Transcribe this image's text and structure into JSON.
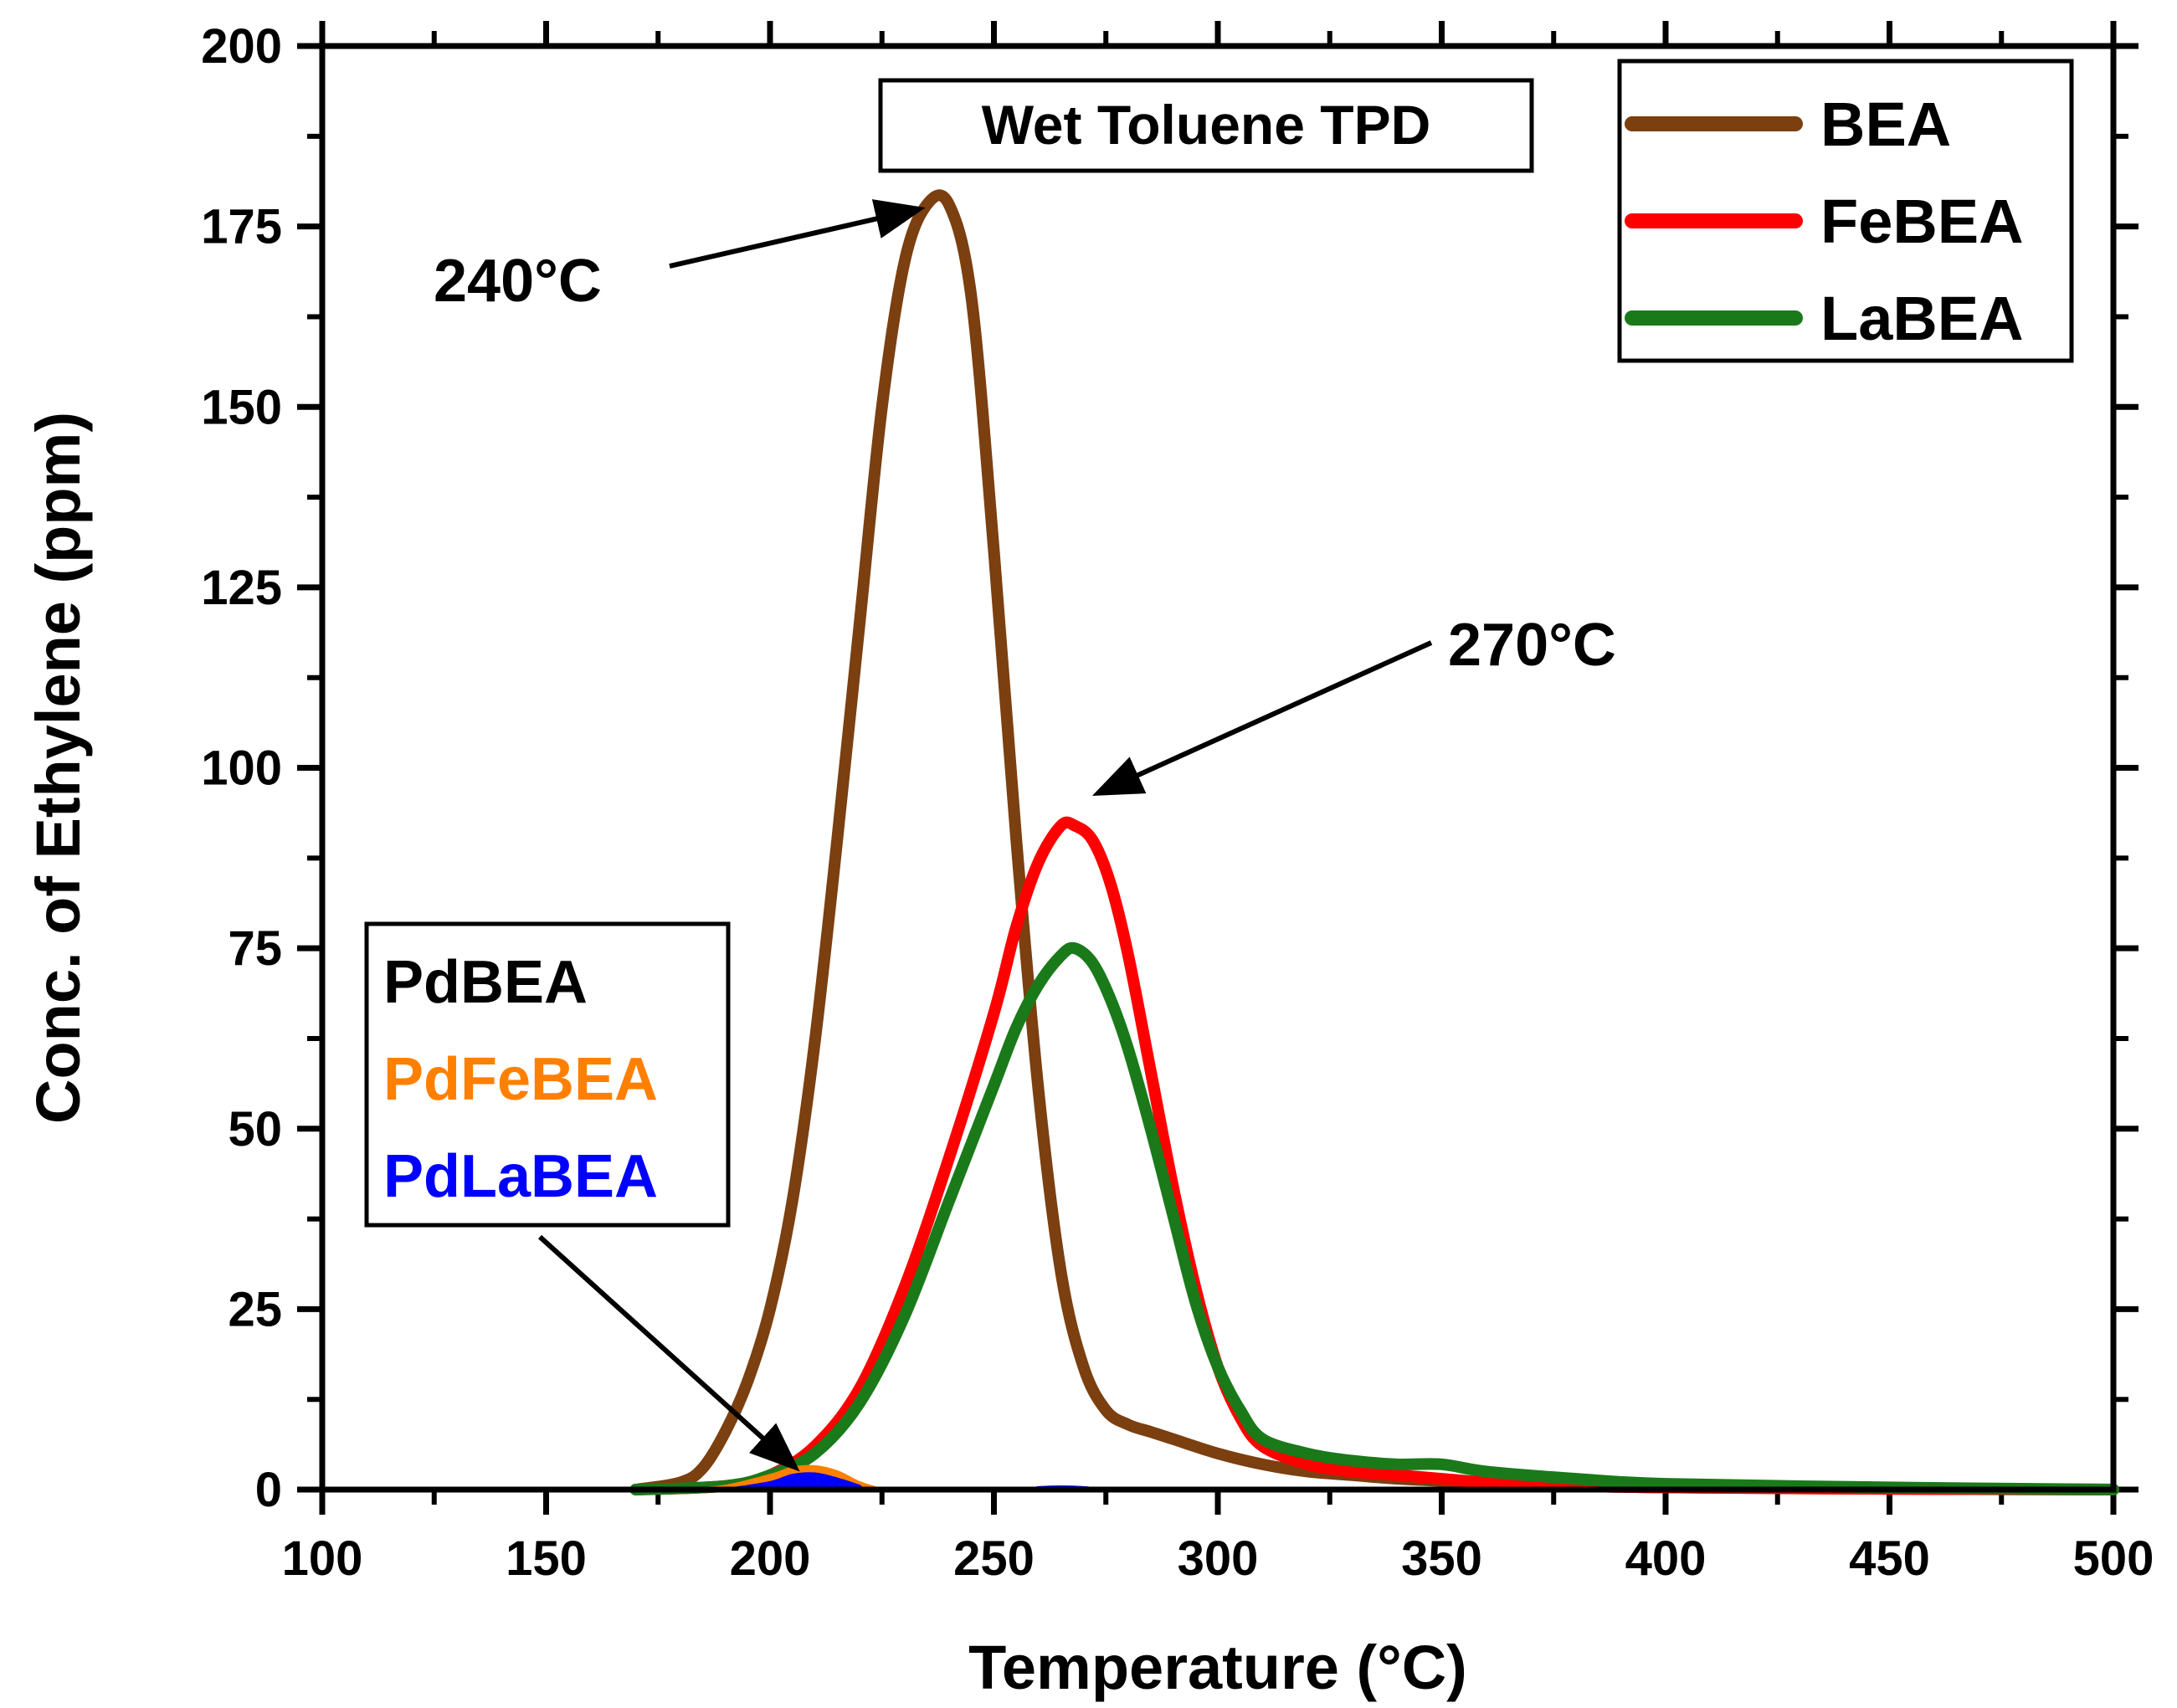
{
  "chart_data": {
    "type": "line",
    "title": "Wet Toluene TPD",
    "xlabel": "Temperature (°C)",
    "ylabel": "Conc. of Ethylene (ppm)",
    "xlim": [
      100,
      500
    ],
    "ylim": [
      0,
      200
    ],
    "xticks": [
      100,
      150,
      200,
      250,
      300,
      350,
      400,
      450,
      500
    ],
    "xtick_labels": [
      "100",
      "150",
      "200",
      "250",
      "300",
      "350",
      "400",
      "450",
      "500"
    ],
    "yticks": [
      0,
      25,
      50,
      75,
      100,
      125,
      150,
      175,
      200
    ],
    "ytick_labels": [
      "0",
      "25",
      "50",
      "75",
      "100",
      "125",
      "150",
      "175",
      "200"
    ],
    "legend": {
      "position": "top-right",
      "entries": [
        {
          "label": "BEA",
          "color": "#7B3F10"
        },
        {
          "label": "FeBEA",
          "color": "#FF0000"
        },
        {
          "label": "LaBEA",
          "color": "#1A7A1A"
        }
      ]
    },
    "secondary_legend": {
      "position": "lower-left",
      "entries": [
        {
          "label": "PdBEA",
          "color": "#000000"
        },
        {
          "label": "PdFeBEA",
          "color": "#FF8000"
        },
        {
          "label": "PdLaBEA",
          "color": "#0000FF"
        }
      ]
    },
    "annotations": [
      {
        "text": "240°C",
        "points_to": {
          "x": 240,
          "y": 178
        }
      },
      {
        "text": "270°C",
        "points_to": {
          "x": 268,
          "y": 96
        }
      }
    ],
    "series": [
      {
        "name": "BEA",
        "color": "#7B3F10",
        "x": [
          170,
          180,
          185,
          190,
          195,
          200,
          205,
          210,
          215,
          220,
          225,
          230,
          235,
          240,
          245,
          250,
          255,
          260,
          265,
          270,
          275,
          280,
          285,
          290,
          300,
          310,
          320,
          330,
          340,
          350,
          360,
          380,
          400,
          450,
          500
        ],
        "y": [
          0,
          1,
          3,
          8,
          15,
          25,
          40,
          62,
          90,
          120,
          150,
          170,
          178,
          178,
          165,
          130,
          90,
          55,
          30,
          17,
          11,
          9,
          8,
          7,
          5,
          3.5,
          2.5,
          2,
          1.5,
          1.2,
          1,
          0.5,
          0.3,
          0.1,
          0
        ]
      },
      {
        "name": "FeBEA",
        "color": "#FF0000",
        "x": [
          170,
          190,
          200,
          210,
          220,
          230,
          240,
          250,
          255,
          260,
          265,
          268,
          272,
          276,
          280,
          285,
          290,
          295,
          300,
          305,
          310,
          320,
          330,
          340,
          350,
          360,
          380,
          400,
          450,
          500
        ],
        "y": [
          0,
          0.5,
          2,
          6,
          14,
          28,
          46,
          66,
          78,
          87,
          92,
          92,
          90,
          84,
          74,
          58,
          42,
          28,
          17,
          10,
          6,
          3.5,
          2.5,
          2,
          1.5,
          1,
          0.5,
          0.3,
          0.1,
          0
        ]
      },
      {
        "name": "LaBEA",
        "color": "#1A7A1A",
        "x": [
          170,
          190,
          200,
          210,
          220,
          230,
          240,
          250,
          255,
          260,
          265,
          268,
          272,
          276,
          280,
          285,
          290,
          295,
          300,
          305,
          310,
          320,
          330,
          340,
          350,
          360,
          380,
          400,
          450,
          500
        ],
        "y": [
          0,
          0.5,
          2,
          5,
          12,
          24,
          40,
          56,
          64,
          70,
          74,
          75,
          73,
          68,
          61,
          50,
          38,
          26,
          17,
          11,
          7,
          5,
          4,
          3.5,
          3.5,
          2.5,
          1.5,
          0.8,
          0.3,
          0
        ]
      },
      {
        "name": "PdBEA",
        "color": "#000000",
        "x": [
          100,
          200,
          210,
          225,
          500
        ],
        "y": [
          0,
          0,
          0.3,
          0,
          0
        ]
      },
      {
        "name": "PdFeBEA",
        "color": "#FF8000",
        "x": [
          180,
          190,
          200,
          205,
          210,
          215,
          220,
          225
        ],
        "y": [
          0,
          0.5,
          2,
          3,
          3.2,
          2.5,
          1,
          0
        ]
      },
      {
        "name": "PdLaBEA",
        "color": "#0000FF",
        "x": [
          190,
          200,
          205,
          210,
          215,
          220,
          222,
          255,
          260,
          265,
          270,
          275
        ],
        "y": [
          0,
          1,
          2,
          2.2,
          1.5,
          0.5,
          0,
          0,
          0.3,
          0.4,
          0.3,
          0
        ]
      }
    ]
  }
}
